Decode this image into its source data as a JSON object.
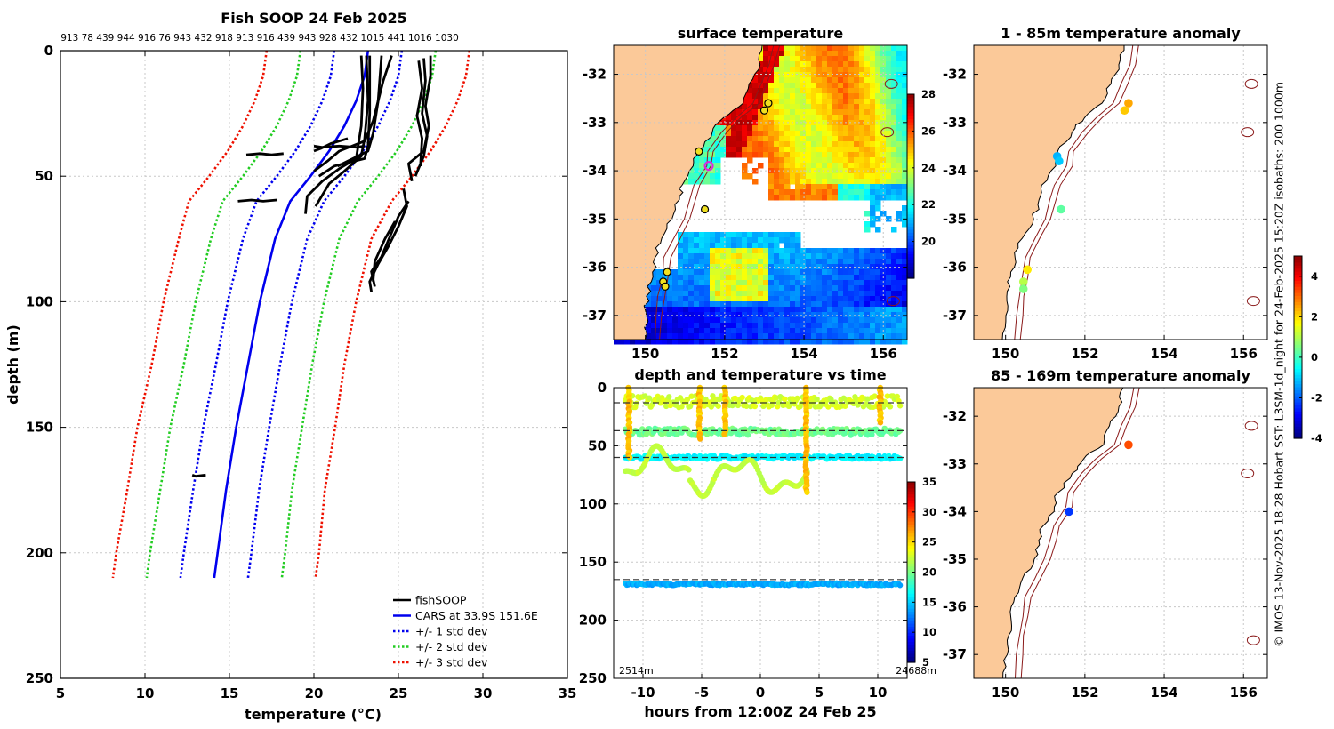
{
  "credit": "© IMOS 13-Nov-2025 18:28 Hobart SST: L3SM-1d_night for 24-Feb-2025 15:20Z isobaths: 200  1000m",
  "colors": {
    "fishsoop": "#000000",
    "cars": "#0000ee",
    "std1": "#0000ee",
    "std2": "#22cc22",
    "std3": "#ee1100",
    "land": "#fbc999",
    "isobath": "#8b1a1a",
    "grid": "#c8c8c8"
  },
  "chart_data": [
    {
      "id": "profile",
      "type": "line",
      "title": "Fish SOOP 24 Feb 2025",
      "top_labels": "913 78 439 944 916 76 943 432 918 913 916 439 943 928 432 1015 441 1016 1030",
      "xlabel": "temperature (°C)",
      "ylabel": "depth (m)",
      "xlim": [
        5,
        35
      ],
      "ylim": [
        0,
        250
      ],
      "xticks": [
        5,
        10,
        15,
        20,
        25,
        30,
        35
      ],
      "yticks": [
        0,
        50,
        100,
        150,
        200,
        250
      ],
      "cars": {
        "depth": [
          0,
          10,
          20,
          30,
          40,
          50,
          60,
          75,
          100,
          125,
          150,
          175,
          200,
          210
        ],
        "temp": [
          23.2,
          23.0,
          22.5,
          21.8,
          20.9,
          19.8,
          18.6,
          17.7,
          16.8,
          16.1,
          15.4,
          14.8,
          14.3,
          14.1
        ],
        "std1": [
          2.0,
          2.0,
          2.0,
          2.0,
          2.0,
          2.0,
          2.0,
          1.9,
          1.9,
          1.9,
          1.95,
          1.95,
          2.0,
          2.0
        ]
      },
      "fishsoop_traces": [
        {
          "t": [
            22.8,
            22.9,
            22.8,
            22.5,
            21.5,
            20.5,
            19.6,
            19.5
          ],
          "d": [
            2,
            15,
            30,
            43,
            47,
            52,
            58,
            65
          ]
        },
        {
          "t": [
            23.1,
            23.2,
            23.0,
            22.8,
            21.8,
            20.9,
            20.1
          ],
          "d": [
            2,
            20,
            35,
            42,
            48,
            53,
            62
          ]
        },
        {
          "t": [
            23.3,
            23.3,
            23.2,
            23.0,
            21.2,
            20.3
          ],
          "d": [
            2,
            25,
            38,
            43,
            46,
            50
          ]
        },
        {
          "t": [
            24.0,
            23.8,
            23.5,
            23.2,
            22.0,
            21.4
          ],
          "d": [
            2,
            20,
            33,
            40,
            44,
            46
          ]
        },
        {
          "t": [
            24.6,
            24.1,
            23.5,
            23.0,
            21.5,
            20.8,
            20.0
          ],
          "d": [
            2,
            12,
            28,
            36,
            40,
            44,
            48
          ]
        },
        {
          "t": [
            22.0,
            21.0,
            20.4,
            20.0
          ],
          "d": [
            35,
            37,
            39,
            40
          ]
        },
        {
          "t": [
            26.9,
            26.9,
            26.6,
            26.8,
            26.5,
            25.6,
            25.8
          ],
          "d": [
            2,
            10,
            22,
            30,
            40,
            45,
            52
          ]
        },
        {
          "t": [
            26.5,
            26.6,
            26.4,
            26.7,
            26.5,
            26.0
          ],
          "d": [
            3,
            12,
            25,
            34,
            42,
            50
          ]
        },
        {
          "t": [
            26.2,
            26.4,
            26.1,
            26.4,
            26.3
          ],
          "d": [
            4,
            15,
            26,
            35,
            46
          ]
        },
        {
          "t": [
            25.3,
            25.5,
            25.0,
            24.4,
            23.8,
            23.3,
            23.4
          ],
          "d": [
            55,
            62,
            70,
            78,
            85,
            92,
            96
          ]
        },
        {
          "t": [
            25.6,
            25.0,
            24.5,
            24.0,
            23.4,
            23.6
          ],
          "d": [
            60,
            66,
            74,
            82,
            88,
            94
          ]
        },
        {
          "t": [
            24.8,
            24.2,
            23.6,
            23.5
          ],
          "d": [
            68,
            75,
            84,
            92
          ]
        },
        {
          "t": [
            23.0,
            22.5,
            21.5,
            20.5,
            20.0
          ],
          "d": [
            38,
            38.5,
            38,
            38.5,
            38
          ]
        },
        {
          "t": [
            18.2,
            17.5,
            16.8,
            16.0
          ],
          "d": [
            41,
            41.5,
            41,
            41.5
          ]
        },
        {
          "t": [
            17.8,
            17.0,
            16.3,
            15.5
          ],
          "d": [
            59.5,
            60,
            59.5,
            60
          ]
        },
        {
          "t": [
            13.6,
            13.0,
            12.8
          ],
          "d": [
            169,
            169.5,
            169
          ]
        }
      ],
      "legend": [
        {
          "label": "fishSOOP",
          "style": "fishsoop"
        },
        {
          "label": "CARS at 33.9S 151.6E",
          "style": "cars"
        },
        {
          "label": "+/- 1 std dev",
          "style": "std1"
        },
        {
          "label": "+/- 2 std dev",
          "style": "std2"
        },
        {
          "label": "+/- 3 std dev",
          "style": "std3"
        }
      ]
    },
    {
      "id": "sst",
      "type": "heatmap",
      "title": "surface temperature",
      "xlim": [
        149.2,
        156.6
      ],
      "ylim": [
        -37.5,
        -31.4
      ],
      "xticks": [
        150,
        152,
        154,
        156
      ],
      "yticks": [
        -32,
        -33,
        -34,
        -35,
        -36,
        -37
      ],
      "colorbar": {
        "min": 18,
        "max": 28,
        "ticks": [
          20,
          22,
          24,
          26,
          28
        ]
      }
    },
    {
      "id": "time",
      "type": "scatter",
      "title": "depth and temperature vs time",
      "xlabel": "hours from 12:00Z 24 Feb 25",
      "xlim": [
        -12.5,
        12.5
      ],
      "ylim": [
        0,
        250
      ],
      "xticks": [
        -10,
        -5,
        0,
        5,
        10
      ],
      "yticks": [
        0,
        50,
        100,
        150,
        200,
        250
      ],
      "nominal_depths": [
        13,
        37,
        60,
        165
      ],
      "corner_left": "2514m",
      "corner_right": "24688m",
      "colorbar": {
        "min": 5,
        "max": 35,
        "ticks": [
          5,
          10,
          15,
          20,
          25,
          30,
          35
        ]
      }
    },
    {
      "id": "anom1",
      "type": "scatter",
      "title": "1 - 85m temperature anomaly",
      "xlim": [
        149.2,
        156.6
      ],
      "ylim": [
        -37.5,
        -31.4
      ],
      "xticks": [
        150,
        152,
        154,
        156
      ],
      "yticks": [
        -32,
        -33,
        -34,
        -35,
        -36,
        -37
      ],
      "points": [
        {
          "lon": 153.1,
          "lat": -32.6,
          "v": 2.4
        },
        {
          "lon": 153.0,
          "lat": -32.75,
          "v": 2.1
        },
        {
          "lon": 151.3,
          "lat": -33.7,
          "v": -1.3
        },
        {
          "lon": 151.35,
          "lat": -33.8,
          "v": -1.1
        },
        {
          "lon": 151.4,
          "lat": -34.8,
          "v": 0.2
        },
        {
          "lon": 150.55,
          "lat": -36.05,
          "v": 1.8
        },
        {
          "lon": 150.45,
          "lat": -36.3,
          "v": 1.0
        },
        {
          "lon": 150.45,
          "lat": -36.45,
          "v": 0.5
        }
      ],
      "colorbar": {
        "min": -4,
        "max": 5,
        "ticks": [
          -4,
          -2,
          0,
          2,
          4
        ]
      }
    },
    {
      "id": "anom2",
      "type": "scatter",
      "title": "85 - 169m temperature anomaly",
      "xlim": [
        149.2,
        156.6
      ],
      "ylim": [
        -37.5,
        -31.4
      ],
      "xticks": [
        150,
        152,
        154,
        156
      ],
      "yticks": [
        -32,
        -33,
        -34,
        -35,
        -36,
        -37
      ],
      "points": [
        {
          "lon": 153.1,
          "lat": -32.6,
          "v": 3.2
        },
        {
          "lon": 151.6,
          "lat": -34.0,
          "v": -2.4
        }
      ]
    }
  ]
}
